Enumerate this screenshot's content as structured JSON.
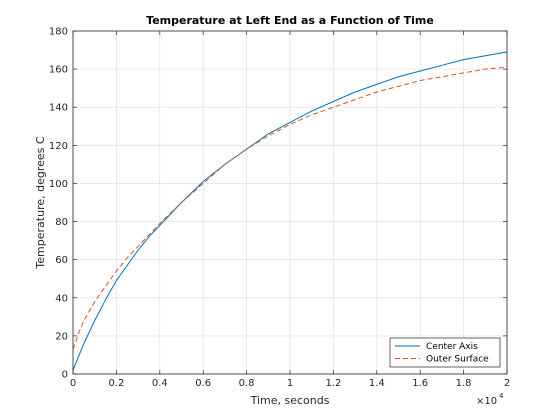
{
  "chart_data": {
    "type": "line",
    "title": "Temperature at Left End as a Function of Time",
    "xlabel": "Time, seconds",
    "ylabel": "Temperature, degrees C",
    "xlim": [
      0,
      20000
    ],
    "ylim": [
      0,
      180
    ],
    "x_ticks": [
      0,
      2000,
      4000,
      6000,
      8000,
      10000,
      12000,
      14000,
      16000,
      18000,
      20000
    ],
    "x_tick_labels": [
      "0",
      "0.2",
      "0.4",
      "0.6",
      "0.8",
      "1",
      "1.2",
      "1.4",
      "1.6",
      "1.8",
      "2"
    ],
    "x_exponent_label": "×10",
    "x_exponent_power": "4",
    "y_ticks": [
      0,
      20,
      40,
      60,
      80,
      100,
      120,
      140,
      160,
      180
    ],
    "y_tick_labels": [
      "0",
      "20",
      "40",
      "60",
      "80",
      "100",
      "120",
      "140",
      "160",
      "180"
    ],
    "grid": true,
    "legend_position": "bottom-right",
    "series": [
      {
        "name": "Center Axis",
        "color": "#0072bd",
        "style": "solid",
        "x": [
          0,
          250,
          500,
          1000,
          1500,
          2000,
          2500,
          3000,
          3500,
          4000,
          5000,
          6000,
          7000,
          8000,
          9000,
          10000,
          11000,
          12000,
          13000,
          14000,
          15000,
          16000,
          17000,
          18000,
          19000,
          20000
        ],
        "y": [
          2,
          9,
          16,
          28,
          39,
          49,
          57,
          65,
          72,
          78,
          90,
          101,
          110,
          118,
          126,
          132,
          138,
          143,
          148,
          152,
          156,
          159,
          162,
          165,
          167,
          169
        ]
      },
      {
        "name": "Outer Surface",
        "color": "#d95319",
        "style": "dashed",
        "x": [
          0,
          250,
          500,
          1000,
          1500,
          2000,
          2500,
          3000,
          3500,
          4000,
          5000,
          6000,
          7000,
          8000,
          9000,
          10000,
          11000,
          12000,
          13000,
          14000,
          15000,
          16000,
          17000,
          18000,
          19000,
          20000
        ],
        "y": [
          13,
          21,
          28,
          38,
          46,
          54,
          61,
          67,
          73,
          79,
          90,
          100,
          110,
          118,
          125,
          131,
          136,
          140,
          144,
          148,
          151,
          154,
          156,
          158,
          160,
          161
        ]
      }
    ]
  }
}
